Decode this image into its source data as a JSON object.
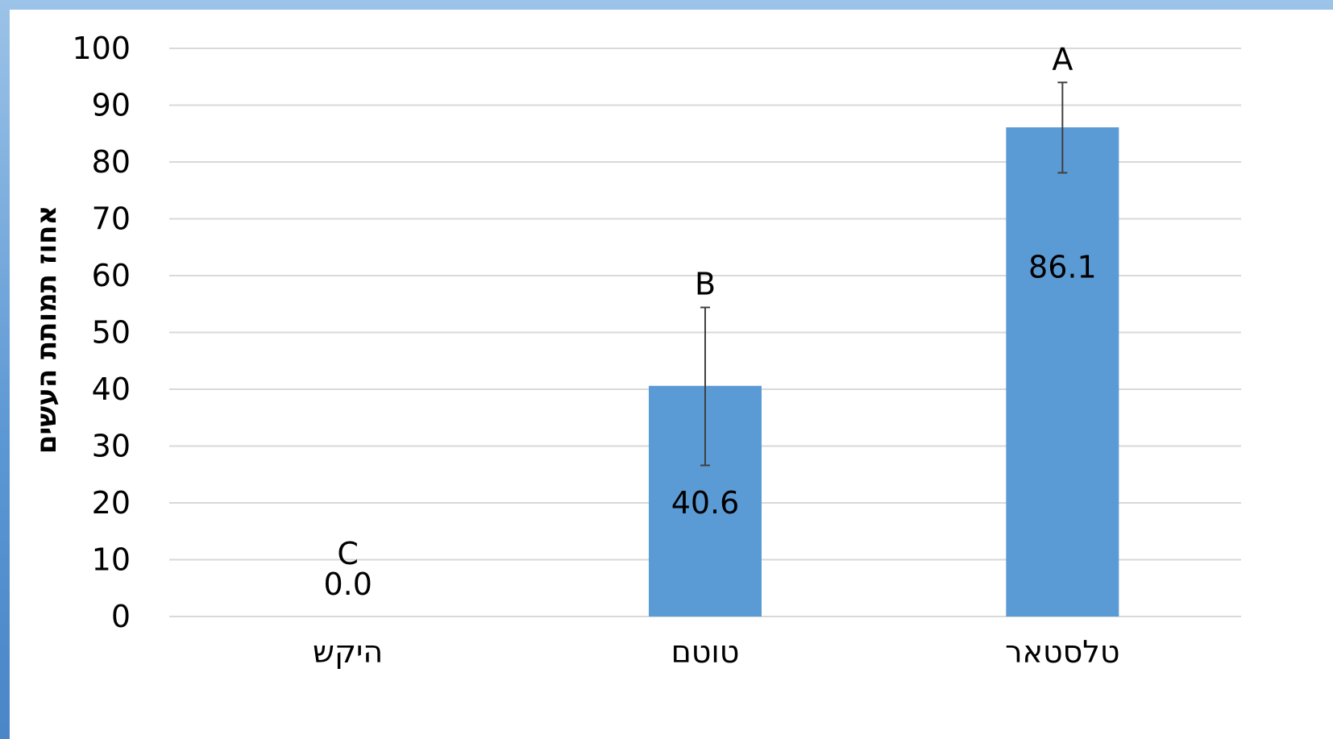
{
  "colors": {
    "bar": "#5b9bd5",
    "grid": "#d9d9d9",
    "errorbar": "#404040",
    "text": "#000000"
  },
  "chart_data": {
    "type": "bar",
    "title": "",
    "xlabel": "",
    "ylabel": "אחוז תמותת העשים",
    "ylim": [
      0,
      100
    ],
    "yticks": [
      0,
      10,
      20,
      30,
      40,
      50,
      60,
      70,
      80,
      90,
      100
    ],
    "grid": true,
    "categories": [
      "היקש",
      "טוטם",
      "טלסטאר"
    ],
    "values": [
      0.0,
      40.6,
      86.1
    ],
    "value_labels": [
      "0.0",
      "40.6",
      "86.1"
    ],
    "error_low": [
      0.0,
      26.6,
      78.1
    ],
    "error_high": [
      0.0,
      54.4,
      94.0
    ],
    "significance_letters": [
      "C",
      "B",
      "A"
    ]
  }
}
